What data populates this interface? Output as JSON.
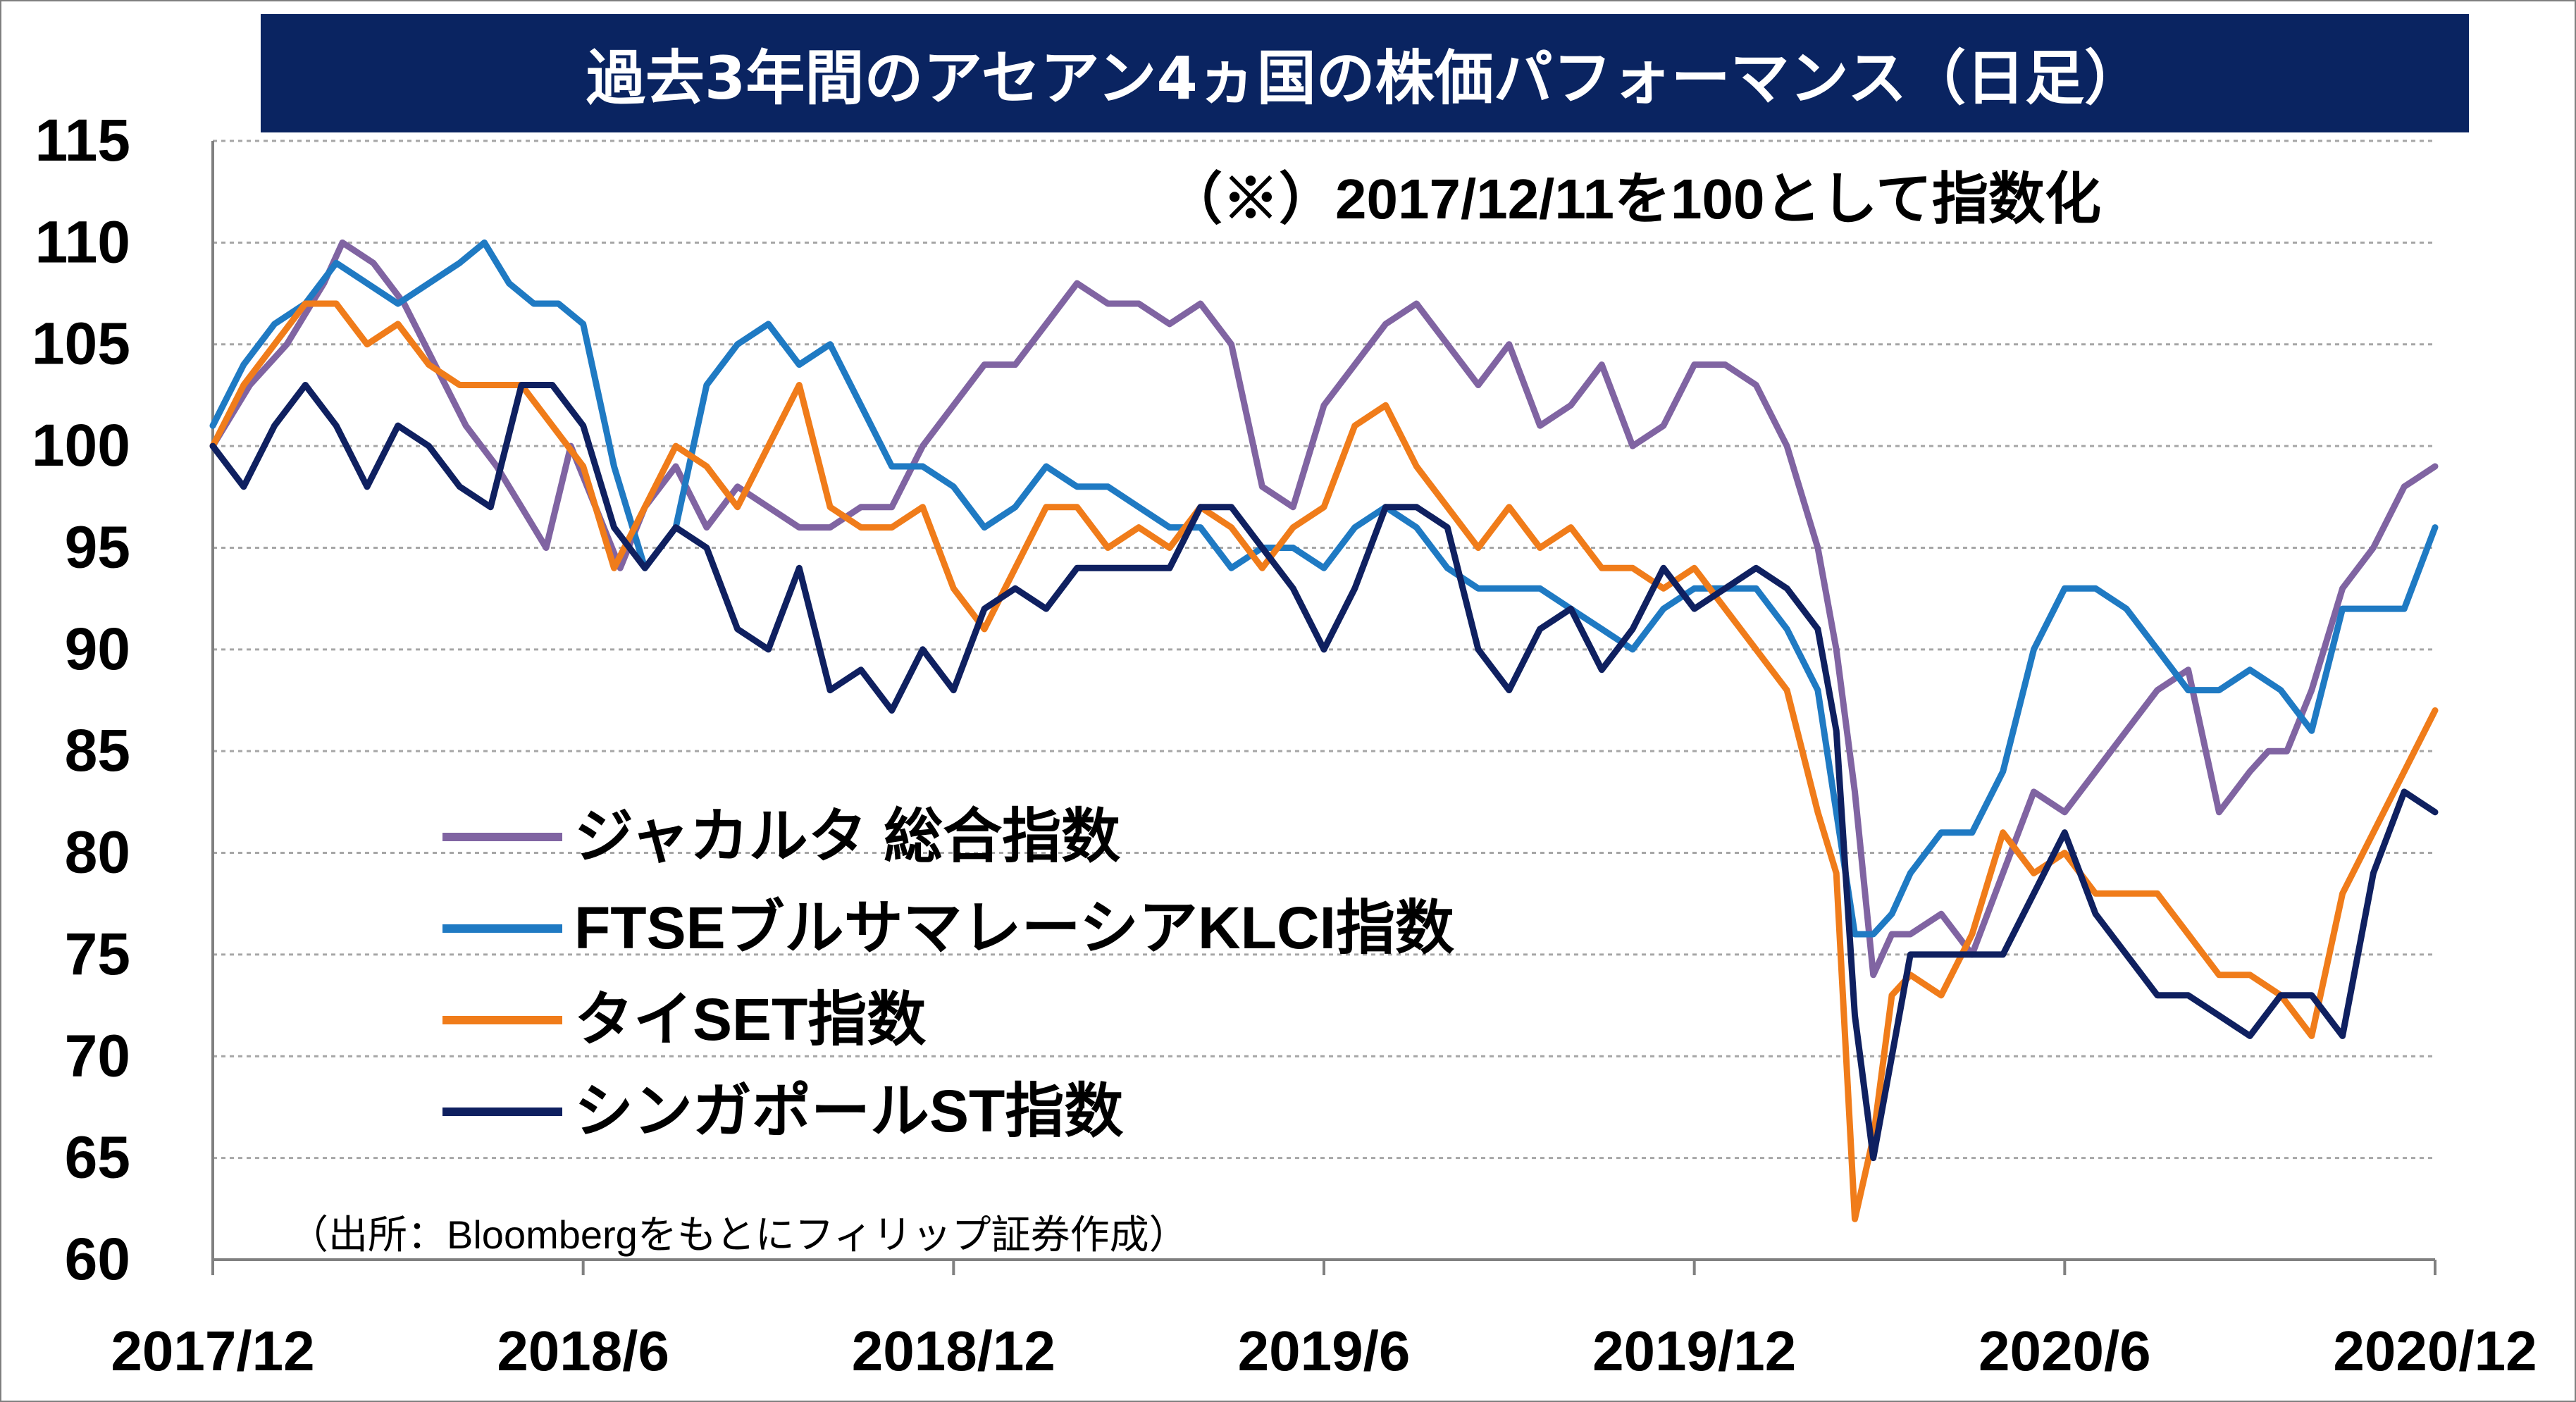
{
  "chart_data": {
    "type": "line",
    "title": "過去3年間のアセアン4ヵ国の株価パフォーマンス（日足）",
    "note": "（※）2017/12/11を100として指数化",
    "source": "（出所：Bloombergをもとにフィリップ証券作成）",
    "xlabel": "",
    "ylabel": "",
    "x_ticks": [
      "2017/12",
      "2018/6",
      "2018/12",
      "2019/6",
      "2019/12",
      "2020/6",
      "2020/12"
    ],
    "y_ticks": [
      115,
      110,
      105,
      100,
      95,
      90,
      85,
      80,
      75,
      70,
      65,
      60
    ],
    "ylim": [
      60,
      115
    ],
    "xlim": [
      0,
      36
    ],
    "x_unit": "months since 2017/12",
    "grid": true,
    "legend_position": "lower-left",
    "series": [
      {
        "name": "ジャカルタ 総合指数",
        "color": "#8064a2",
        "x": [
          0,
          0.6,
          1.2,
          1.8,
          2.1,
          2.6,
          3.1,
          3.6,
          4.1,
          4.6,
          5.0,
          5.4,
          5.8,
          6.2,
          6.6,
          7.0,
          7.5,
          8.0,
          8.5,
          9.0,
          9.5,
          10.0,
          10.5,
          11.0,
          11.5,
          12.0,
          12.5,
          13.0,
          13.5,
          14.0,
          14.5,
          15.0,
          15.5,
          16.0,
          16.5,
          17.0,
          17.5,
          18.0,
          18.5,
          19.0,
          19.5,
          20.0,
          20.5,
          21.0,
          21.5,
          22.0,
          22.5,
          23.0,
          23.5,
          24.0,
          24.5,
          25.0,
          25.5,
          26.0,
          26.3,
          26.6,
          26.9,
          27.2,
          27.5,
          28.0,
          28.5,
          29.0,
          29.5,
          30.0,
          30.5,
          31.0,
          31.5,
          32.0,
          32.5,
          33.0,
          33.3,
          33.6,
          34.0,
          34.5,
          35.0,
          35.5,
          36.0
        ],
        "values": [
          100,
          103,
          105,
          108,
          110,
          109,
          107,
          104,
          101,
          99,
          97,
          95,
          100,
          97,
          94,
          97,
          99,
          96,
          98,
          97,
          96,
          96,
          97,
          97,
          100,
          102,
          104,
          104,
          106,
          108,
          107,
          107,
          106,
          107,
          105,
          98,
          97,
          102,
          104,
          106,
          107,
          105,
          103,
          105,
          101,
          102,
          104,
          100,
          101,
          104,
          104,
          103,
          100,
          95,
          90,
          83,
          74,
          76,
          76,
          77,
          75,
          79,
          83,
          82,
          84,
          86,
          88,
          89,
          82,
          84,
          85,
          85,
          88,
          93,
          95,
          98,
          99
        ]
      },
      {
        "name": "FTSEブルサマレーシアKLCI指数",
        "color": "#1f7ac3",
        "x": [
          0,
          0.5,
          1.0,
          1.5,
          2.0,
          2.5,
          3.0,
          3.5,
          4.0,
          4.4,
          4.8,
          5.2,
          5.6,
          6.0,
          6.5,
          7.0,
          7.5,
          8.0,
          8.5,
          9.0,
          9.5,
          10.0,
          10.5,
          11.0,
          11.5,
          12.0,
          12.5,
          13.0,
          13.5,
          14.0,
          14.5,
          15.0,
          15.5,
          16.0,
          16.5,
          17.0,
          17.5,
          18.0,
          18.5,
          19.0,
          19.5,
          20.0,
          20.5,
          21.0,
          21.5,
          22.0,
          22.5,
          23.0,
          23.5,
          24.0,
          24.5,
          25.0,
          25.5,
          26.0,
          26.3,
          26.6,
          26.9,
          27.2,
          27.5,
          28.0,
          28.5,
          29.0,
          29.5,
          30.0,
          30.5,
          31.0,
          31.5,
          32.0,
          32.5,
          33.0,
          33.5,
          34.0,
          34.5,
          35.0,
          35.5,
          36.0
        ],
        "values": [
          101,
          104,
          106,
          107,
          109,
          108,
          107,
          108,
          109,
          110,
          108,
          107,
          107,
          106,
          99,
          94,
          96,
          103,
          105,
          106,
          104,
          105,
          102,
          99,
          99,
          98,
          96,
          97,
          99,
          98,
          98,
          97,
          96,
          96,
          94,
          95,
          95,
          94,
          96,
          97,
          96,
          94,
          93,
          93,
          93,
          92,
          91,
          90,
          92,
          93,
          93,
          93,
          91,
          88,
          82,
          76,
          76,
          77,
          79,
          81,
          81,
          84,
          90,
          93,
          93,
          92,
          90,
          88,
          88,
          89,
          88,
          86,
          92,
          92,
          92,
          96
        ]
      },
      {
        "name": "タイSET指数",
        "color": "#f07c1a",
        "x": [
          0,
          0.5,
          1.0,
          1.5,
          2.0,
          2.5,
          3.0,
          3.5,
          4.0,
          4.5,
          5.0,
          5.5,
          6.0,
          6.5,
          7.0,
          7.5,
          8.0,
          8.5,
          9.0,
          9.5,
          10.0,
          10.5,
          11.0,
          11.5,
          12.0,
          12.5,
          13.0,
          13.5,
          14.0,
          14.5,
          15.0,
          15.5,
          16.0,
          16.5,
          17.0,
          17.5,
          18.0,
          18.5,
          19.0,
          19.5,
          20.0,
          20.5,
          21.0,
          21.5,
          22.0,
          22.5,
          23.0,
          23.5,
          24.0,
          24.5,
          25.0,
          25.5,
          26.0,
          26.3,
          26.6,
          26.9,
          27.2,
          27.5,
          28.0,
          28.5,
          29.0,
          29.5,
          30.0,
          30.5,
          31.0,
          31.5,
          32.0,
          32.5,
          33.0,
          33.5,
          34.0,
          34.5,
          35.0,
          35.5,
          36.0
        ],
        "values": [
          100,
          103,
          105,
          107,
          107,
          105,
          106,
          104,
          103,
          103,
          103,
          101,
          99,
          94,
          97,
          100,
          99,
          97,
          100,
          103,
          97,
          96,
          96,
          97,
          93,
          91,
          94,
          97,
          97,
          95,
          96,
          95,
          97,
          96,
          94,
          96,
          97,
          101,
          102,
          99,
          97,
          95,
          97,
          95,
          96,
          94,
          94,
          93,
          94,
          92,
          90,
          88,
          82,
          79,
          62,
          66,
          73,
          74,
          73,
          76,
          81,
          79,
          80,
          78,
          78,
          78,
          76,
          74,
          74,
          73,
          71,
          78,
          81,
          84,
          87
        ]
      },
      {
        "name": "シンガポールST指数",
        "color": "#0f2060",
        "x": [
          0,
          0.5,
          1.0,
          1.5,
          2.0,
          2.5,
          3.0,
          3.5,
          4.0,
          4.5,
          5.0,
          5.5,
          6.0,
          6.5,
          7.0,
          7.5,
          8.0,
          8.5,
          9.0,
          9.5,
          10.0,
          10.5,
          11.0,
          11.5,
          12.0,
          12.5,
          13.0,
          13.5,
          14.0,
          14.5,
          15.0,
          15.5,
          16.0,
          16.5,
          17.0,
          17.5,
          18.0,
          18.5,
          19.0,
          19.5,
          20.0,
          20.5,
          21.0,
          21.5,
          22.0,
          22.5,
          23.0,
          23.5,
          24.0,
          24.5,
          25.0,
          25.5,
          26.0,
          26.3,
          26.6,
          26.9,
          27.2,
          27.5,
          28.0,
          28.5,
          29.0,
          29.5,
          30.0,
          30.5,
          31.0,
          31.5,
          32.0,
          32.5,
          33.0,
          33.5,
          34.0,
          34.5,
          35.0,
          35.5,
          36.0
        ],
        "values": [
          100,
          98,
          101,
          103,
          101,
          98,
          101,
          100,
          98,
          97,
          103,
          103,
          101,
          96,
          94,
          96,
          95,
          91,
          90,
          94,
          88,
          89,
          87,
          90,
          88,
          92,
          93,
          92,
          94,
          94,
          94,
          94,
          97,
          97,
          95,
          93,
          90,
          93,
          97,
          97,
          96,
          90,
          88,
          91,
          92,
          89,
          91,
          94,
          92,
          93,
          94,
          93,
          91,
          86,
          72,
          65,
          70,
          75,
          75,
          75,
          75,
          78,
          81,
          77,
          75,
          73,
          73,
          72,
          71,
          73,
          73,
          71,
          79,
          83,
          82
        ]
      }
    ]
  }
}
